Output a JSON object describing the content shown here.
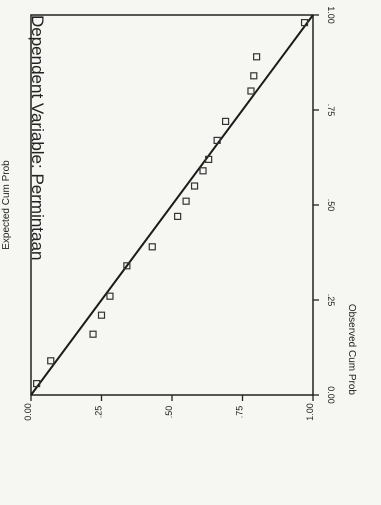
{
  "chart_data": {
    "type": "scatter",
    "title": "Dependent Variable: Permintaan",
    "xlabel": "Observed Cum Prob",
    "ylabel": "Expected Cum Prob",
    "xlim": [
      0,
      1
    ],
    "ylim": [
      0,
      1
    ],
    "x_ticks": [
      "0.00",
      ".25",
      ".50",
      ".75",
      "1.00"
    ],
    "y_ticks": [
      "0.00",
      ".25",
      ".50",
      ".75",
      "1.00"
    ],
    "grid": false,
    "reference_line": {
      "from": [
        0,
        0
      ],
      "to": [
        1,
        1
      ]
    },
    "points": [
      {
        "x": 0.03,
        "y": 0.02
      },
      {
        "x": 0.09,
        "y": 0.07
      },
      {
        "x": 0.16,
        "y": 0.22
      },
      {
        "x": 0.21,
        "y": 0.25
      },
      {
        "x": 0.26,
        "y": 0.28
      },
      {
        "x": 0.34,
        "y": 0.34
      },
      {
        "x": 0.39,
        "y": 0.43
      },
      {
        "x": 0.47,
        "y": 0.52
      },
      {
        "x": 0.51,
        "y": 0.55
      },
      {
        "x": 0.55,
        "y": 0.58
      },
      {
        "x": 0.59,
        "y": 0.61
      },
      {
        "x": 0.62,
        "y": 0.63
      },
      {
        "x": 0.67,
        "y": 0.66
      },
      {
        "x": 0.72,
        "y": 0.69
      },
      {
        "x": 0.8,
        "y": 0.78
      },
      {
        "x": 0.84,
        "y": 0.79
      },
      {
        "x": 0.89,
        "y": 0.8
      },
      {
        "x": 0.98,
        "y": 0.97
      }
    ],
    "colors": {
      "axis": "#222222",
      "marker": "#333333",
      "line": "#1a1a1a"
    }
  }
}
